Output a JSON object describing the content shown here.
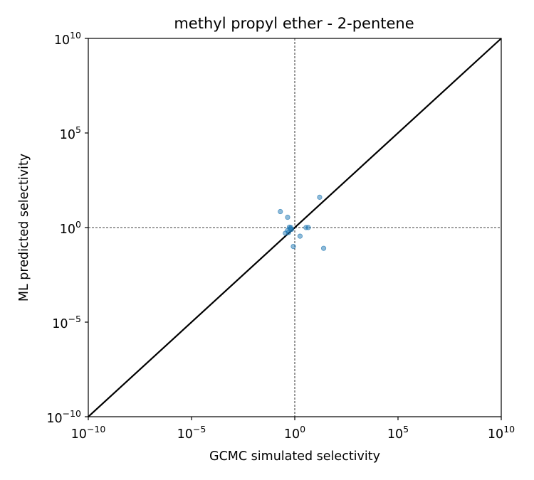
{
  "chart_data": {
    "type": "scatter",
    "title": "methyl propyl ether - 2-pentene",
    "xlabel": "GCMC simulated selectivity",
    "ylabel": "ML predicted selectivity",
    "xscale": "log",
    "yscale": "log",
    "xlim": [
      1e-10,
      10000000000.0
    ],
    "ylim": [
      1e-10,
      10000000000.0
    ],
    "x_ticks": [
      {
        "base": "10",
        "exp": "−10",
        "value": 1e-10
      },
      {
        "base": "10",
        "exp": "−5",
        "value": 1e-05
      },
      {
        "base": "10",
        "exp": "0",
        "value": 1
      },
      {
        "base": "10",
        "exp": "5",
        "value": 100000.0
      },
      {
        "base": "10",
        "exp": "10",
        "value": 10000000000.0
      }
    ],
    "y_ticks": [
      {
        "base": "10",
        "exp": "−10",
        "value": 1e-10
      },
      {
        "base": "10",
        "exp": "−5",
        "value": 1e-05
      },
      {
        "base": "10",
        "exp": "0",
        "value": 1
      },
      {
        "base": "10",
        "exp": "5",
        "value": 100000.0
      },
      {
        "base": "10",
        "exp": "10",
        "value": 10000000000.0
      }
    ],
    "reference_lines": {
      "identity_line": true,
      "crosshair_x": 1,
      "crosshair_y": 1
    },
    "grid": false,
    "marker_color": "#1f77b4",
    "points": [
      {
        "x": 0.2,
        "y": 7.0
      },
      {
        "x": 0.45,
        "y": 3.5
      },
      {
        "x": 0.55,
        "y": 1.05
      },
      {
        "x": 0.65,
        "y": 1.0
      },
      {
        "x": 0.6,
        "y": 0.85
      },
      {
        "x": 0.45,
        "y": 0.7
      },
      {
        "x": 0.35,
        "y": 0.5
      },
      {
        "x": 0.5,
        "y": 0.55
      },
      {
        "x": 0.7,
        "y": 0.8
      },
      {
        "x": 0.85,
        "y": 0.1
      },
      {
        "x": 1.8,
        "y": 0.35
      },
      {
        "x": 3.5,
        "y": 1.0
      },
      {
        "x": 4.5,
        "y": 1.0
      },
      {
        "x": 16,
        "y": 40
      },
      {
        "x": 25,
        "y": 0.08
      }
    ]
  }
}
